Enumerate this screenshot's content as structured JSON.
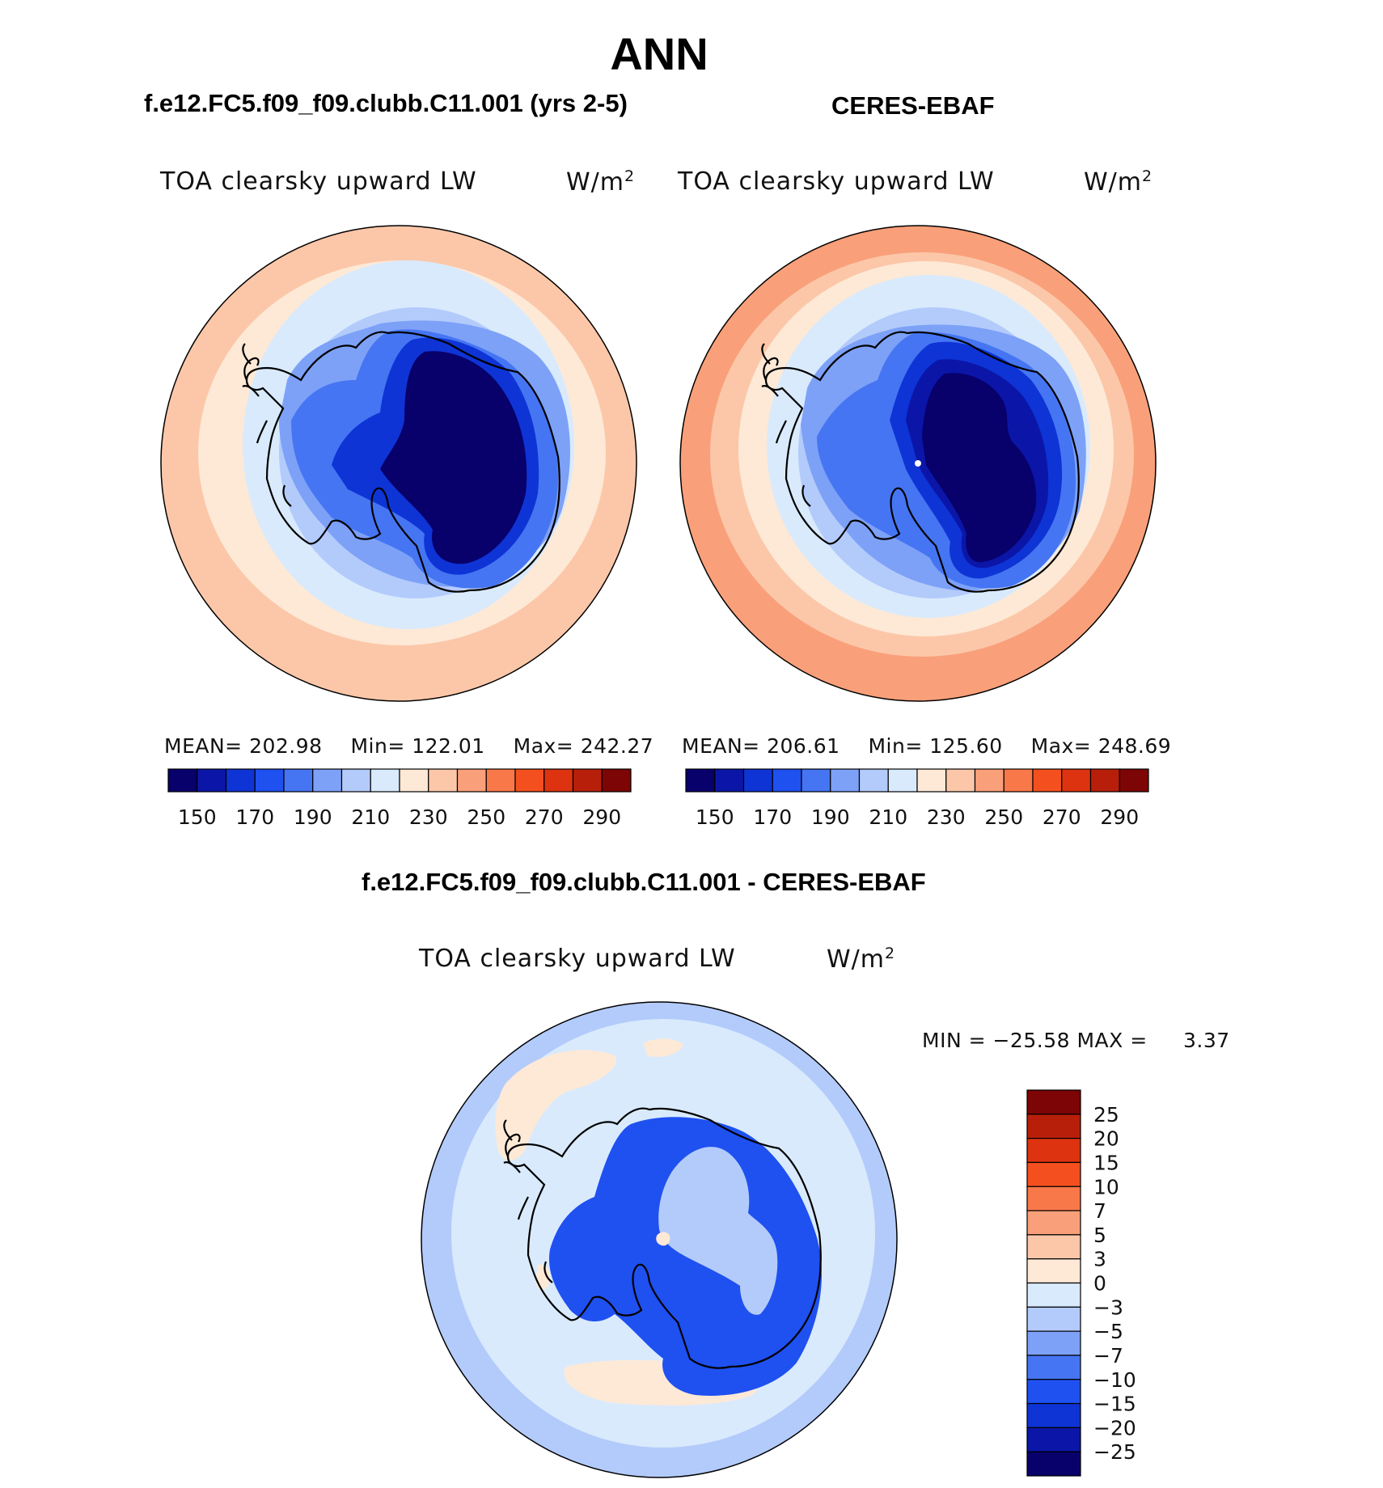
{
  "title": "ANN",
  "panels": [
    {
      "case_title": "f.e12.FC5.f09_f09.clubb.C11.001 (yrs 2-5)",
      "variable": "TOA clearsky upward LW",
      "units": "W/m",
      "units_sup": "2",
      "stats": {
        "mean_label": "MEAN=",
        "mean": "202.98",
        "min_label": "Min=",
        "min": "122.01",
        "max_label": "Max=",
        "max": "242.27"
      }
    },
    {
      "case_title": "CERES-EBAF",
      "variable": "TOA clearsky upward LW",
      "units": "W/m",
      "units_sup": "2",
      "stats": {
        "mean_label": "MEAN=",
        "mean": "206.61",
        "min_label": "Min=",
        "min": "125.60",
        "max_label": "Max=",
        "max": "248.69"
      }
    }
  ],
  "diff": {
    "case_title": "f.e12.FC5.f09_f09.clubb.C11.001 - CERES-EBAF",
    "variable": "TOA clearsky upward LW",
    "units": "W/m",
    "units_sup": "2",
    "stats_text": "MIN = −25.58 MAX =",
    "max_value": "3.37"
  },
  "colorbar_main": {
    "colors": [
      "#08006b",
      "#0b16a8",
      "#0e34d6",
      "#1f50f0",
      "#4575f2",
      "#7da1f7",
      "#b3cbfb",
      "#d9eafd",
      "#fde9d6",
      "#fcc7a9",
      "#f9a07a",
      "#f9784a",
      "#f4501f",
      "#dd3310",
      "#b81f0a",
      "#7e0505"
    ],
    "ticks": [
      "150",
      "170",
      "190",
      "210",
      "230",
      "250",
      "270",
      "290"
    ]
  },
  "colorbar_diff": {
    "colors": [
      "#7e0505",
      "#b81f0a",
      "#dd3310",
      "#f4501f",
      "#f9784a",
      "#f9a07a",
      "#fcc7a9",
      "#fde9d6",
      "#d9eafd",
      "#b3cbfb",
      "#7da1f7",
      "#4575f2",
      "#1f50f0",
      "#0e34d6",
      "#0b16a8",
      "#08006b"
    ],
    "ticks": [
      "25",
      "20",
      "15",
      "10",
      "7",
      "5",
      "3",
      "0",
      "−3",
      "−5",
      "−7",
      "−10",
      "−15",
      "−20",
      "−25"
    ]
  },
  "map_colors": {
    "ocean_outer": "#fcc7a9",
    "ocean_warm": "#fde9d6",
    "ocean_mid": "#d9eafd",
    "ice_edge": "#b3cbfb",
    "coast": "#7da1f7",
    "land_edge": "#4575f2",
    "land_mid": "#0e34d6",
    "land_inner": "#0b16a8",
    "plateau": "#08006b",
    "ceres_outer": "#f9a07a",
    "diff_base": "#b3cbfb",
    "diff_ocean": "#d9eafd",
    "diff_warm": "#fde9d6",
    "diff_land": "#1f50f0",
    "diff_inner": "#b3cbfb"
  }
}
